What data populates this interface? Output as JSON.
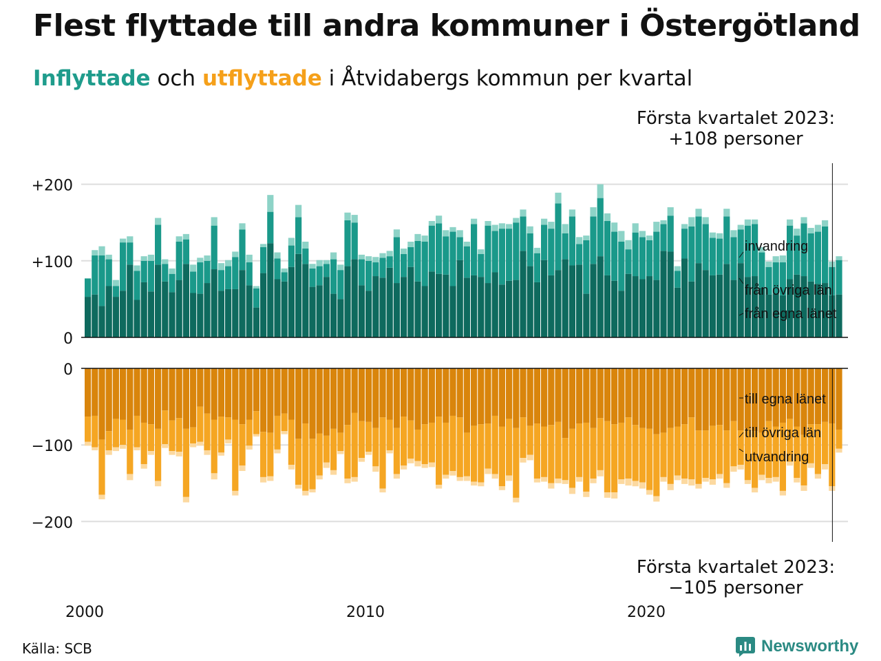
{
  "title": "Flest flyttade till andra kommuner i Östergötland",
  "subtitle": {
    "part1": "Inflyttade",
    "part2": " och ",
    "part3": "utflyttade",
    "part4": " i Åtvidabergs kommun per kvartal"
  },
  "notes": {
    "top_line1": "Första kvartalet 2023:",
    "top_line2": "+108 personer",
    "bottom_line1": "Första kvartalet 2023:",
    "bottom_line2": "−105 personer"
  },
  "source": "Källa: SCB",
  "logo_text": "Newsworthy",
  "colors": {
    "in_egna": "#0e6a5e",
    "in_ovriga": "#1a998a",
    "in_invandring": "#8dd3c7",
    "out_egna": "#d9850c",
    "out_ovriga": "#f5a623",
    "out_utvandring": "#fcd9a0",
    "grid": "#dddddd"
  },
  "chart_data": {
    "type": "bar",
    "x_start": "2000 Q1",
    "x_ticks": [
      "2000",
      "2010",
      "2020"
    ],
    "top": {
      "y_ticks": [
        "+200",
        "+100",
        "0"
      ],
      "ylim": [
        0,
        230
      ],
      "series": [
        {
          "name": "från egna länet",
          "values": [
            53,
            56,
            41,
            67,
            53,
            61,
            95,
            49,
            72,
            60,
            95,
            73,
            59,
            75,
            96,
            58,
            57,
            71,
            89,
            61,
            63,
            63,
            88,
            68,
            39,
            84,
            123,
            76,
            73,
            92,
            109,
            96,
            66,
            68,
            79,
            57,
            50,
            93,
            102,
            68,
            61,
            80,
            78,
            91,
            71,
            79,
            92,
            73,
            67,
            86,
            83,
            82,
            67,
            101,
            78,
            81,
            79,
            71,
            85,
            69,
            74,
            75,
            113,
            93,
            72,
            101,
            81,
            88,
            102,
            94,
            95,
            57,
            96,
            106,
            81,
            74,
            61,
            83,
            80,
            76,
            80,
            75,
            113,
            112,
            65,
            103,
            73,
            97,
            88,
            81,
            82,
            96,
            75,
            97,
            79,
            80,
            65,
            56,
            57,
            55,
            76,
            82,
            80,
            73,
            70,
            71,
            55,
            56
          ]
        },
        {
          "name": "från övriga län",
          "values": [
            24,
            51,
            66,
            35,
            14,
            63,
            29,
            38,
            28,
            40,
            52,
            23,
            24,
            50,
            32,
            28,
            41,
            29,
            57,
            27,
            30,
            42,
            53,
            30,
            25,
            34,
            41,
            27,
            12,
            28,
            48,
            20,
            24,
            25,
            17,
            45,
            38,
            60,
            48,
            34,
            39,
            18,
            26,
            15,
            60,
            30,
            26,
            53,
            58,
            60,
            66,
            50,
            71,
            30,
            41,
            67,
            30,
            75,
            54,
            73,
            68,
            75,
            45,
            43,
            38,
            46,
            61,
            87,
            34,
            64,
            27,
            70,
            62,
            76,
            71,
            64,
            64,
            32,
            57,
            55,
            47,
            63,
            35,
            47,
            22,
            39,
            72,
            61,
            60,
            49,
            47,
            62,
            56,
            44,
            67,
            68,
            46,
            36,
            41,
            43,
            70,
            51,
            69,
            63,
            68,
            74,
            37,
            45
          ]
        },
        {
          "name": "invandring",
          "values": [
            0,
            7,
            12,
            6,
            8,
            5,
            8,
            7,
            6,
            8,
            9,
            6,
            7,
            7,
            7,
            9,
            6,
            7,
            11,
            9,
            8,
            7,
            8,
            10,
            3,
            4,
            22,
            8,
            5,
            10,
            16,
            9,
            6,
            8,
            5,
            9,
            7,
            10,
            10,
            6,
            6,
            7,
            6,
            7,
            10,
            7,
            7,
            9,
            8,
            6,
            10,
            8,
            6,
            9,
            6,
            7,
            6,
            6,
            8,
            7,
            6,
            6,
            9,
            9,
            7,
            8,
            9,
            14,
            12,
            9,
            9,
            6,
            12,
            18,
            10,
            12,
            14,
            12,
            12,
            8,
            6,
            13,
            5,
            11,
            6,
            6,
            12,
            10,
            9,
            7,
            7,
            10,
            9,
            6,
            8,
            6,
            7,
            7,
            8,
            9,
            8,
            9,
            8,
            7,
            9,
            8,
            7,
            5
          ]
        }
      ]
    },
    "bottom": {
      "y_ticks": [
        "0",
        "−100",
        "−200"
      ],
      "ylim": [
        -225,
        0
      ],
      "series": [
        {
          "name": "till egna länet",
          "values": [
            -63,
            -62,
            -93,
            -82,
            -66,
            -67,
            -80,
            -62,
            -71,
            -73,
            -79,
            -55,
            -68,
            -65,
            -79,
            -77,
            -50,
            -59,
            -67,
            -63,
            -64,
            -67,
            -73,
            -67,
            -56,
            -83,
            -84,
            -62,
            -59,
            -67,
            -92,
            -72,
            -92,
            -85,
            -88,
            -79,
            -84,
            -74,
            -58,
            -69,
            -70,
            -78,
            -64,
            -67,
            -78,
            -63,
            -68,
            -80,
            -73,
            -71,
            -63,
            -71,
            -62,
            -64,
            -84,
            -75,
            -73,
            -72,
            -62,
            -76,
            -66,
            -78,
            -64,
            -75,
            -72,
            -76,
            -74,
            -70,
            -91,
            -79,
            -72,
            -71,
            -78,
            -65,
            -69,
            -73,
            -71,
            -64,
            -74,
            -78,
            -79,
            -86,
            -84,
            -78,
            -76,
            -73,
            -64,
            -81,
            -81,
            -75,
            -74,
            -81,
            -69,
            -81,
            -79,
            -82,
            -84,
            -69,
            -76,
            -71,
            -66,
            -76,
            -87,
            -73,
            -73,
            -70,
            -72,
            -80
          ]
        },
        {
          "name": "till övriga län",
          "values": [
            -33,
            -41,
            -72,
            -25,
            -37,
            -33,
            -58,
            -41,
            -54,
            -35,
            -68,
            -44,
            -40,
            -44,
            -89,
            -21,
            -46,
            -48,
            -70,
            -47,
            -29,
            -93,
            -54,
            -34,
            -30,
            -59,
            -57,
            -44,
            -23,
            -59,
            -60,
            -88,
            -66,
            -55,
            -35,
            -54,
            -24,
            -70,
            -84,
            -48,
            -39,
            -50,
            -93,
            -40,
            -60,
            -64,
            -50,
            -41,
            -52,
            -52,
            -89,
            -68,
            -72,
            -78,
            -57,
            -73,
            -76,
            -59,
            -76,
            -78,
            -74,
            -91,
            -53,
            -38,
            -72,
            -66,
            -76,
            -74,
            -55,
            -77,
            -70,
            -90,
            -66,
            -68,
            -93,
            -89,
            -74,
            -80,
            -73,
            -71,
            -80,
            -81,
            -58,
            -73,
            -64,
            -71,
            -81,
            -70,
            -62,
            -70,
            -64,
            -69,
            -59,
            -45,
            -67,
            -74,
            -55,
            -74,
            -66,
            -89,
            -56,
            -67,
            -66,
            -51,
            -65,
            -55,
            -82,
            -25
          ]
        },
        {
          "name": "utvandring",
          "values": [
            -5,
            -4,
            -6,
            -6,
            -5,
            -5,
            -8,
            -4,
            -6,
            -5,
            -7,
            -5,
            -5,
            -6,
            -7,
            -5,
            -5,
            -6,
            -8,
            -4,
            -5,
            -6,
            -7,
            -5,
            -3,
            -7,
            -6,
            -5,
            -4,
            -6,
            -5,
            -6,
            -4,
            -5,
            -7,
            -6,
            -4,
            -6,
            -6,
            -5,
            -4,
            -7,
            -5,
            -4,
            -6,
            -5,
            -6,
            -7,
            -5,
            -6,
            -5,
            -5,
            -6,
            -5,
            -6,
            -5,
            -5,
            -7,
            -6,
            -5,
            -7,
            -6,
            -6,
            -7,
            -5,
            -6,
            -7,
            -6,
            -5,
            -8,
            -6,
            -7,
            -6,
            -8,
            -7,
            -8,
            -6,
            -9,
            -7,
            -8,
            -6,
            -7,
            -6,
            -8,
            -6,
            -7,
            -8,
            -6,
            -5,
            -7,
            -6,
            -6,
            -7,
            -6,
            -5,
            -6,
            -7,
            -7,
            -6,
            -6,
            -5,
            -6,
            -7,
            -6,
            -6,
            -7,
            -6,
            -5
          ]
        }
      ]
    },
    "series_labels_top": [
      "invandring",
      "från övriga län",
      "från egna länet"
    ],
    "series_labels_bottom": [
      "till egna länet",
      "till övriga län",
      "utvandring"
    ]
  }
}
